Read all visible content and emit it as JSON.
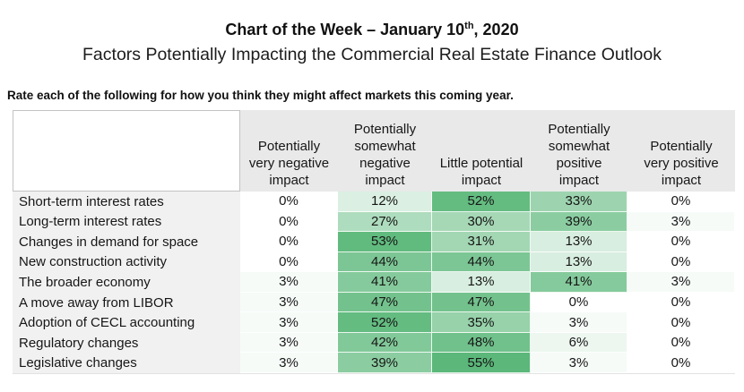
{
  "title": {
    "prefix": "Chart of the Week – January 10",
    "superscript": "th",
    "suffix": ", 2020"
  },
  "subtitle": "Factors Potentially Impacting the Commercial Real Estate Finance Outlook",
  "instruction": "Rate each of the following for how you think they might affect markets this coming year.",
  "chart_data": {
    "type": "heatmap",
    "value_format": "percent",
    "columns": [
      "Potentially very negative impact",
      "Potentially somewhat negative impact",
      "Little potential impact",
      "Potentially somewhat positive impact",
      "Potentially very positive impact"
    ],
    "rows": [
      {
        "label": "Short-term interest rates",
        "values": [
          0,
          12,
          52,
          33,
          0
        ]
      },
      {
        "label": "Long-term interest rates",
        "values": [
          0,
          27,
          30,
          39,
          3
        ]
      },
      {
        "label": "Changes in demand for space",
        "values": [
          0,
          53,
          31,
          13,
          0
        ]
      },
      {
        "label": "New construction activity",
        "values": [
          0,
          44,
          44,
          13,
          0
        ]
      },
      {
        "label": "The broader economy",
        "values": [
          3,
          41,
          13,
          41,
          3
        ]
      },
      {
        "label": "A move away from LIBOR",
        "values": [
          3,
          47,
          47,
          0,
          0
        ]
      },
      {
        "label": "Adoption of CECL accounting",
        "values": [
          3,
          52,
          35,
          3,
          0
        ]
      },
      {
        "label": "Regulatory changes",
        "values": [
          3,
          42,
          48,
          6,
          0
        ]
      },
      {
        "label": "Legislative changes",
        "values": [
          3,
          39,
          55,
          3,
          0
        ]
      }
    ],
    "color_scale": {
      "min_color": "#ffffff",
      "max_color": "#5bb87a",
      "max_value": 55
    }
  },
  "colors": {
    "header_bg": "#e9e9e9",
    "label_bg": "#f1f1f1",
    "corner_border": "#c3c3c3",
    "text": "#161616"
  }
}
